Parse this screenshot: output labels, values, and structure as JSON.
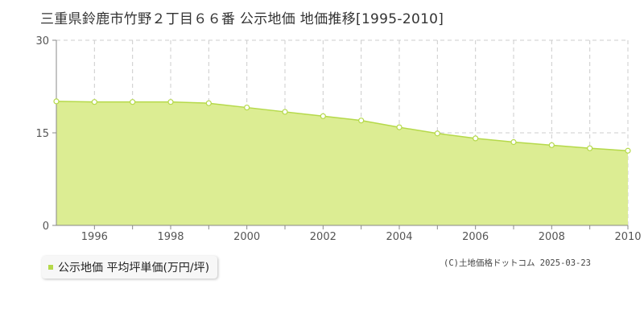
{
  "header": {
    "title": "三重県鈴鹿市竹野２丁目６６番 公示地価 地価推移[1995-2010]"
  },
  "legend": {
    "label": "公示地価 平均坪単価(万円/坪)"
  },
  "footer": {
    "credit": "(C)土地価格ドットコム 2025-03-23"
  },
  "colors": {
    "fill": "#dced93",
    "line": "#b5d94a",
    "grid": "#cccccc",
    "axis": "#888888"
  },
  "chart_data": {
    "type": "area",
    "title": "三重県鈴鹿市竹野２丁目６６番 公示地価 地価推移[1995-2010]",
    "xlabel": "",
    "ylabel": "",
    "x": [
      1995,
      1996,
      1997,
      1998,
      1999,
      2000,
      2001,
      2002,
      2003,
      2004,
      2005,
      2006,
      2007,
      2008,
      2009,
      2010
    ],
    "series": [
      {
        "name": "公示地価 平均坪単価(万円/坪)",
        "values": [
          20.1,
          20.0,
          20.0,
          20.0,
          19.8,
          19.1,
          18.4,
          17.7,
          17.0,
          15.9,
          14.9,
          14.1,
          13.5,
          13.0,
          12.5,
          12.1
        ]
      }
    ],
    "xlim": [
      1995,
      2010
    ],
    "ylim": [
      0,
      30
    ],
    "y_ticks": [
      0,
      15,
      30
    ],
    "x_ticks": [
      1996,
      1998,
      2000,
      2002,
      2004,
      2006,
      2008,
      2010
    ],
    "grid": true,
    "legend_position": "bottom-left"
  }
}
